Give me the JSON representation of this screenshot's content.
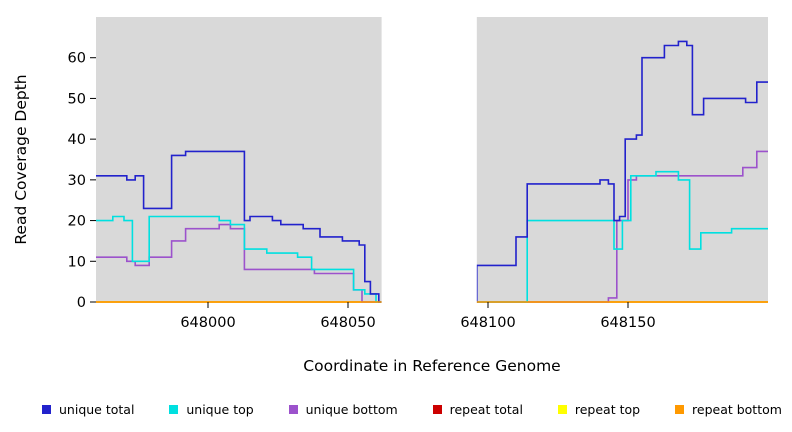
{
  "chart_data": {
    "type": "line",
    "subtype": "step-coverage-plot",
    "title": "",
    "xlabel": "Coordinate in Reference Genome",
    "ylabel": "Read Coverage Depth",
    "xlim": [
      647960,
      648200
    ],
    "ylim": [
      0,
      70
    ],
    "x_ticks": [
      648000,
      648050,
      648100,
      648150
    ],
    "y_ticks": [
      0,
      10,
      20,
      30,
      40,
      50,
      60
    ],
    "gap_region": [
      648062,
      648096
    ],
    "panel_bg": "#d9d9d9",
    "grid": false,
    "series": [
      {
        "name": "unique total",
        "color": "#2222cc",
        "z": 5,
        "steps": [
          [
            647960,
            31
          ],
          [
            647971,
            30
          ],
          [
            647974,
            31
          ],
          [
            647977,
            23
          ],
          [
            647987,
            36
          ],
          [
            647992,
            37
          ],
          [
            648013,
            20
          ],
          [
            648015,
            21
          ],
          [
            648023,
            20
          ],
          [
            648026,
            19
          ],
          [
            648034,
            18
          ],
          [
            648040,
            16
          ],
          [
            648048,
            15
          ],
          [
            648054,
            14
          ],
          [
            648056,
            5
          ],
          [
            648058,
            2
          ],
          [
            648061,
            0
          ],
          [
            648096,
            9
          ],
          [
            648110,
            16
          ],
          [
            648114,
            29
          ],
          [
            648140,
            30
          ],
          [
            648143,
            29
          ],
          [
            648145,
            20
          ],
          [
            648147,
            21
          ],
          [
            648149,
            40
          ],
          [
            648153,
            41
          ],
          [
            648155,
            60
          ],
          [
            648163,
            63
          ],
          [
            648168,
            64
          ],
          [
            648171,
            63
          ],
          [
            648173,
            46
          ],
          [
            648177,
            50
          ],
          [
            648192,
            49
          ],
          [
            648196,
            54
          ]
        ]
      },
      {
        "name": "unique top",
        "color": "#00e0e0",
        "z": 4,
        "steps": [
          [
            647960,
            20
          ],
          [
            647966,
            21
          ],
          [
            647970,
            20
          ],
          [
            647973,
            10
          ],
          [
            647979,
            21
          ],
          [
            648004,
            20
          ],
          [
            648008,
            19
          ],
          [
            648013,
            13
          ],
          [
            648021,
            12
          ],
          [
            648032,
            11
          ],
          [
            648037,
            8
          ],
          [
            648052,
            3
          ],
          [
            648056,
            2
          ],
          [
            648060,
            0
          ],
          [
            648114,
            20
          ],
          [
            648145,
            13
          ],
          [
            648148,
            20
          ],
          [
            648151,
            31
          ],
          [
            648160,
            32
          ],
          [
            648168,
            30
          ],
          [
            648172,
            13
          ],
          [
            648176,
            17
          ],
          [
            648187,
            18
          ]
        ]
      },
      {
        "name": "unique bottom",
        "color": "#9c52cc",
        "z": 3,
        "steps": [
          [
            647960,
            11
          ],
          [
            647971,
            10
          ],
          [
            647974,
            9
          ],
          [
            647979,
            11
          ],
          [
            647987,
            15
          ],
          [
            647992,
            18
          ],
          [
            648004,
            19
          ],
          [
            648008,
            18
          ],
          [
            648013,
            8
          ],
          [
            648038,
            7
          ],
          [
            648052,
            3
          ],
          [
            648055,
            0
          ],
          [
            648143,
            1
          ],
          [
            648146,
            20
          ],
          [
            648150,
            30
          ],
          [
            648153,
            31
          ],
          [
            648191,
            33
          ],
          [
            648196,
            37
          ]
        ]
      },
      {
        "name": "repeat total",
        "color": "#cc0000",
        "z": 1,
        "steps": [
          [
            647960,
            0
          ]
        ]
      },
      {
        "name": "repeat top",
        "color": "#ffff00",
        "z": 2,
        "steps": [
          [
            647960,
            0
          ]
        ]
      },
      {
        "name": "repeat bottom",
        "color": "#ff9900",
        "z": 6,
        "steps": [
          [
            647960,
            0
          ]
        ]
      }
    ]
  },
  "legend": {
    "items": [
      {
        "label": "unique total",
        "color": "#2222cc"
      },
      {
        "label": "unique top",
        "color": "#00e0e0"
      },
      {
        "label": "unique bottom",
        "color": "#9c52cc"
      },
      {
        "label": "repeat total",
        "color": "#cc0000"
      },
      {
        "label": "repeat top",
        "color": "#ffff00"
      },
      {
        "label": "repeat bottom",
        "color": "#ff9900"
      }
    ]
  }
}
